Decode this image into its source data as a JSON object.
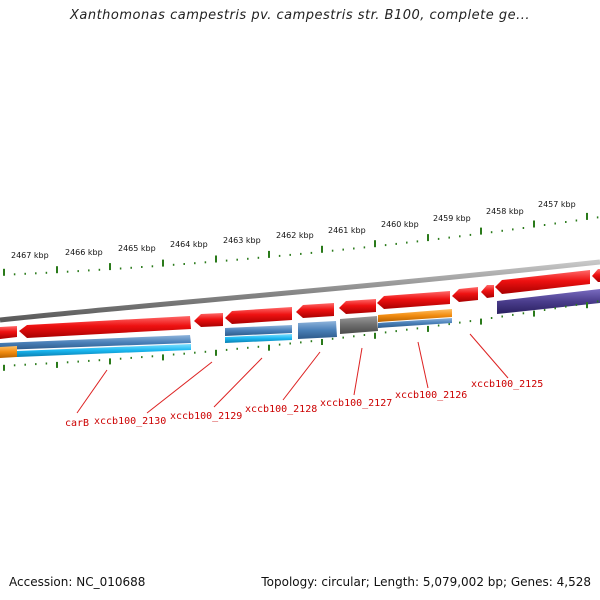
{
  "title": "Xanthomonas campestris pv. campestris str. B100, complete ge...",
  "footer": {
    "accession": "Accession: NC_010688",
    "summary": "Topology: circular; Length: 5,079,002 bp; Genes: 4,528"
  },
  "ruler": [
    {
      "label": "2467 kbp"
    },
    {
      "label": "2466 kbp"
    },
    {
      "label": "2465 kbp"
    },
    {
      "label": "2464 kbp"
    },
    {
      "label": "2463 kbp"
    },
    {
      "label": "2462 kbp"
    },
    {
      "label": "2461 kbp"
    },
    {
      "label": "2460 kbp"
    },
    {
      "label": "2459 kbp"
    },
    {
      "label": "2458 kbp"
    },
    {
      "label": "2457 kbp"
    }
  ],
  "gene_labels": [
    {
      "label": "carB"
    },
    {
      "label": "xccb100_2130"
    },
    {
      "label": "xccb100_2129"
    },
    {
      "label": "xccb100_2128"
    },
    {
      "label": "xccb100_2127"
    },
    {
      "label": "xccb100_2126"
    },
    {
      "label": "xccb100_2125"
    }
  ],
  "colors": {
    "backbone": "#8a8a8a",
    "gene_red": "#ee1111",
    "cds_blue": "#4a80b8",
    "cyan": "#19b6f0",
    "orange": "#f28c10",
    "purple": "#4a3d8c",
    "grey": "#6e6e6e",
    "tick_green": "#2a7a1a",
    "label_red": "#cc0000"
  }
}
